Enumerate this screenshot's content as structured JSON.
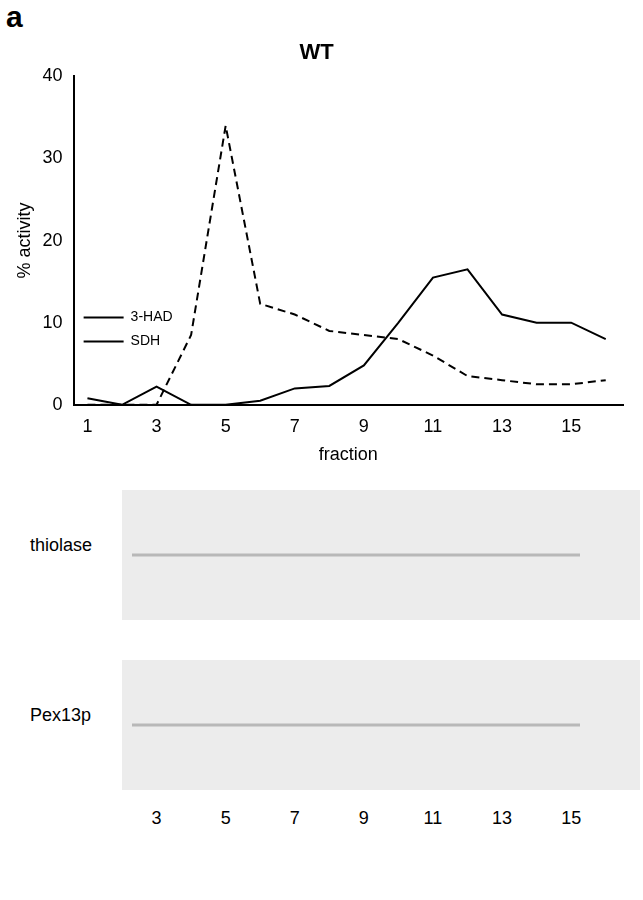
{
  "panel_label": "a",
  "chart_data": {
    "type": "line",
    "title": "WT",
    "x_label": "fraction",
    "y_label": "% activity",
    "x": [
      1,
      2,
      3,
      4,
      5,
      6,
      7,
      8,
      9,
      10,
      11,
      12,
      13,
      14,
      15,
      16
    ],
    "series": [
      {
        "name": "3-HAD",
        "color": "#000000",
        "line_style": "dashed",
        "values": [
          0,
          0,
          0,
          8.5,
          34,
          12.3,
          11,
          9,
          8.5,
          8,
          6,
          3.5,
          3,
          2.5,
          2.5,
          3
        ]
      },
      {
        "name": "SDH",
        "color": "#000000",
        "line_style": "solid",
        "values": [
          0.8,
          0,
          2.2,
          0,
          0,
          0.5,
          2,
          2.3,
          4.8,
          10,
          15.5,
          16.5,
          11,
          10,
          10,
          8
        ]
      }
    ],
    "xlim": [
      0.6,
      16.5
    ],
    "xticks": [
      1,
      3,
      5,
      7,
      9,
      11,
      13,
      15
    ],
    "ylim": [
      0,
      40
    ],
    "yticks": [
      0,
      10,
      20,
      30,
      40
    ],
    "grid": false,
    "legend": "top-right"
  },
  "blots": {
    "rows": [
      {
        "label": "thiolase"
      },
      {
        "label": "Pex13p"
      }
    ],
    "lanes": [
      3,
      5,
      7,
      9,
      11,
      13,
      15
    ]
  }
}
